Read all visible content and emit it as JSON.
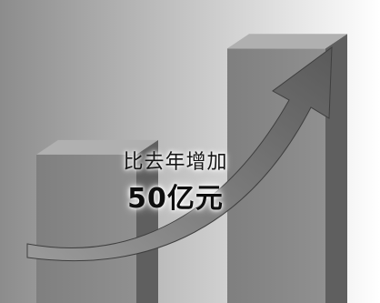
{
  "chart_data": {
    "type": "bar",
    "categories": [
      "",
      ""
    ],
    "values": [
      70,
      120
    ],
    "ylim": [
      0,
      130
    ],
    "grid": false,
    "annotation": {
      "line1": "比去年增加",
      "line2": "50亿元"
    }
  },
  "colors": {
    "background_dark": "#8c8c8c",
    "background_light": "#ffffff",
    "bar_front": "#7f7f7f",
    "bar_side": "#5f5f5f",
    "bar_top": "#b0b0b0",
    "arrow": "#5a5a5a"
  }
}
